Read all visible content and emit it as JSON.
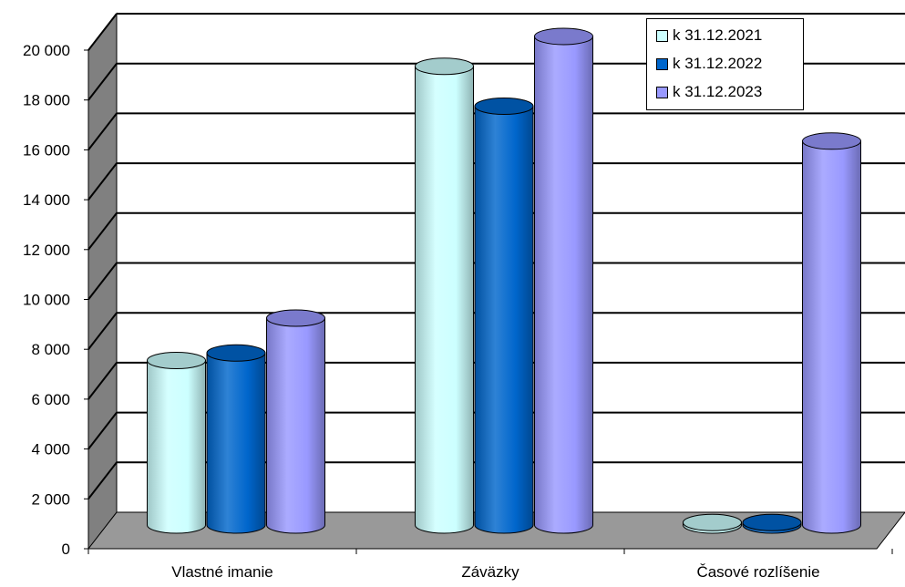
{
  "chart_data": {
    "type": "bar",
    "style": "3d-cylinder",
    "title": "",
    "xlabel": "",
    "ylabel": "",
    "categories": [
      "Vlastné imanie",
      "Záväzky",
      "Časové rozlíšenie"
    ],
    "series": [
      {
        "name": "k 31.12.2021",
        "color": "#CCFFFF",
        "values": [
          6600,
          18400,
          100
        ]
      },
      {
        "name": "k 31.12.2022",
        "color": "#0066CC",
        "values": [
          6900,
          16800,
          100
        ]
      },
      {
        "name": "k 31.12.2023",
        "color": "#9999FF",
        "values": [
          8300,
          19600,
          15400
        ]
      }
    ],
    "ylim": [
      0,
      20000
    ],
    "yticks": [
      0,
      2000,
      4000,
      6000,
      8000,
      10000,
      12000,
      14000,
      16000,
      18000,
      20000
    ],
    "ytick_labels": [
      "0",
      "2 000",
      "4 000",
      "6 000",
      "8 000",
      "10 000",
      "12 000",
      "14 000",
      "16 000",
      "18 000",
      "20 000"
    ],
    "grid": true,
    "legend_position": "top-right",
    "colors": {
      "wall_side": "#808080",
      "floor": "#999999",
      "grid": "#000000"
    }
  }
}
